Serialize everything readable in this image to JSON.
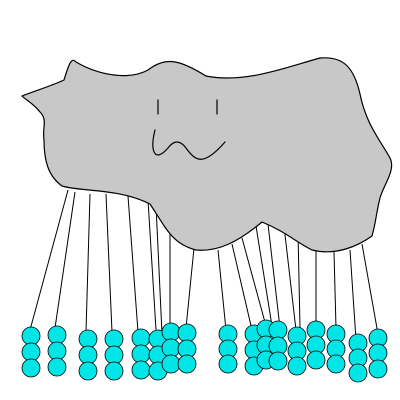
{
  "scene": {
    "background_color": "#ffffff",
    "cloud_color": "#c8c8c8",
    "outline_color": "#000000",
    "ball_color": "#00e5e5"
  },
  "cloud": {
    "face": {
      "left_eye": "eye-line",
      "right_eye": "eye-line",
      "mouth": "w-mouth"
    }
  },
  "strings": {
    "count": 20
  },
  "balls": {
    "count": 58
  }
}
